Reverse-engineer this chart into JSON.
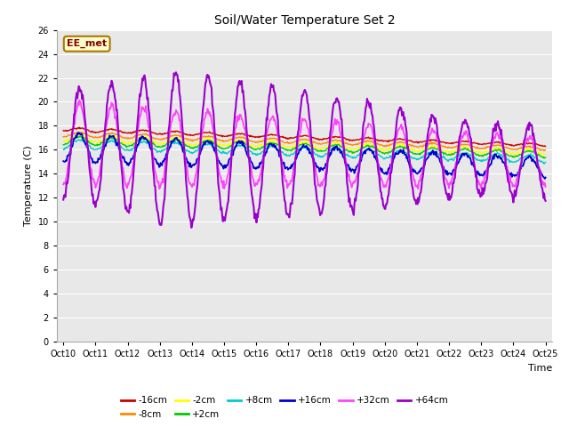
{
  "title": "Soil/Water Temperature Set 2",
  "xlabel": "Time",
  "ylabel": "Temperature (C)",
  "ylim": [
    0,
    26
  ],
  "yticks": [
    0,
    2,
    4,
    6,
    8,
    10,
    12,
    14,
    16,
    18,
    20,
    22,
    24,
    26
  ],
  "xtick_labels": [
    "Oct 10",
    "Oct 11",
    "Oct 12",
    "Oct 13",
    "Oct 14",
    "Oct 15",
    "Oct 16",
    "Oct 17",
    "Oct 18",
    "Oct 19",
    "Oct 20",
    "Oct 21",
    "Oct 22",
    "Oct 23",
    "Oct 24",
    "Oct 25"
  ],
  "series_colors": {
    "-16cm": "#cc0000",
    "-8cm": "#ff8800",
    "-2cm": "#ffff00",
    "+2cm": "#00cc00",
    "+8cm": "#00cccc",
    "+16cm": "#0000cc",
    "+32cm": "#ff44ff",
    "+64cm": "#9900cc"
  },
  "legend_label": "EE_met",
  "plot_bg_color": "#e8e8e8"
}
